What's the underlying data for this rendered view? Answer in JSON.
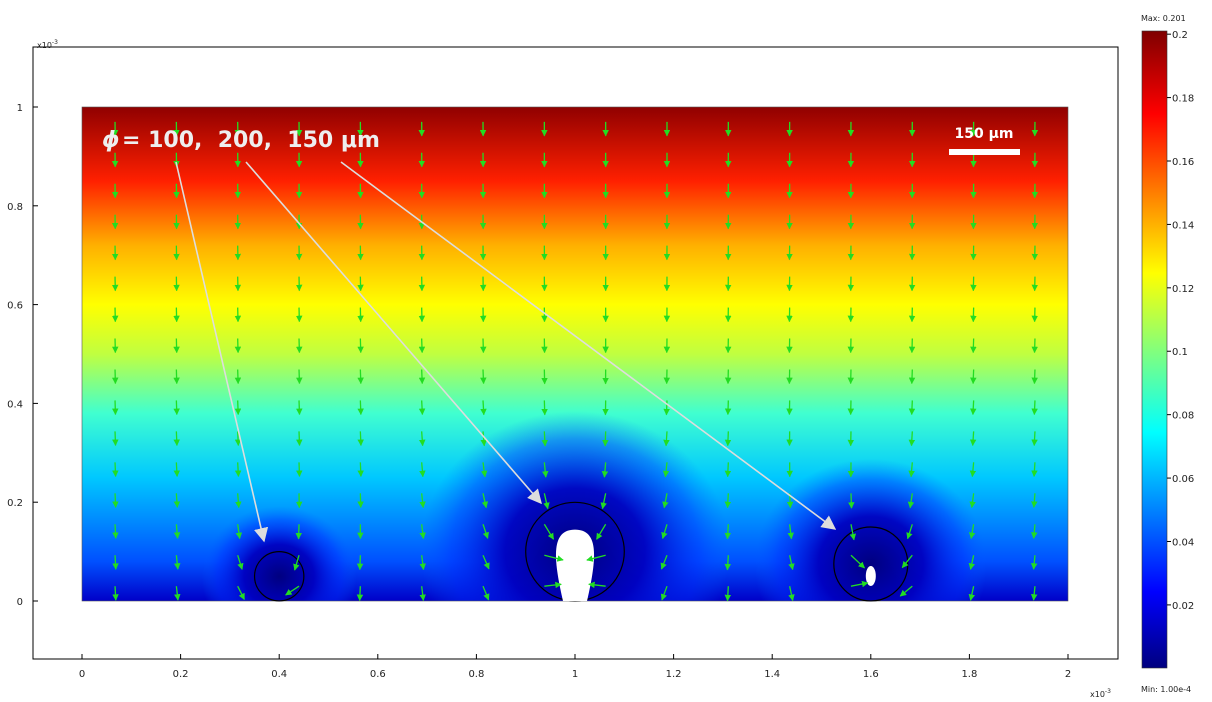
{
  "chart_data": {
    "type": "heatmap",
    "x_ticks": [
      "0",
      "0.2",
      "0.4",
      "0.6",
      "0.8",
      "1",
      "1.2",
      "1.4",
      "1.6",
      "1.8",
      "2"
    ],
    "y_ticks": [
      "0",
      "0.2",
      "0.4",
      "0.6",
      "0.8",
      "1"
    ],
    "x_exponent": "x10-3",
    "y_exponent": "x10-3",
    "xlim": [
      -0.1,
      2.1
    ],
    "ylim": [
      -0.12,
      1.12
    ],
    "domain_x": [
      0,
      2
    ],
    "domain_y": [
      0,
      1
    ],
    "colorbar": {
      "max_label": "Max: 0.201",
      "min_label": "Min: 1.00e-4",
      "ticks": [
        "0.2",
        "0.18",
        "0.16",
        "0.14",
        "0.12",
        "0.1",
        "0.08",
        "0.06",
        "0.04",
        "0.02"
      ],
      "range": [
        0.0001,
        0.201
      ],
      "colors": [
        "#00007f",
        "#0000ff",
        "#00ffff",
        "#ffff00",
        "#ff0000",
        "#7f0000"
      ]
    },
    "cells": [
      {
        "x": 0.4,
        "y": 0.05,
        "boundary_radius": 0.05
      },
      {
        "x": 1.0,
        "y": 0.1,
        "boundary_radius": 0.1
      },
      {
        "x": 1.6,
        "y": 0.075,
        "boundary_radius": 0.075
      }
    ],
    "annotation": {
      "symbol": "ϕ",
      "text": "= 100,  200,  150 μm",
      "color": "#dddddd"
    },
    "scale_bar": {
      "label": "150 μm",
      "length": 0.15
    },
    "arrow_color": "#22dd22",
    "grid": false
  }
}
